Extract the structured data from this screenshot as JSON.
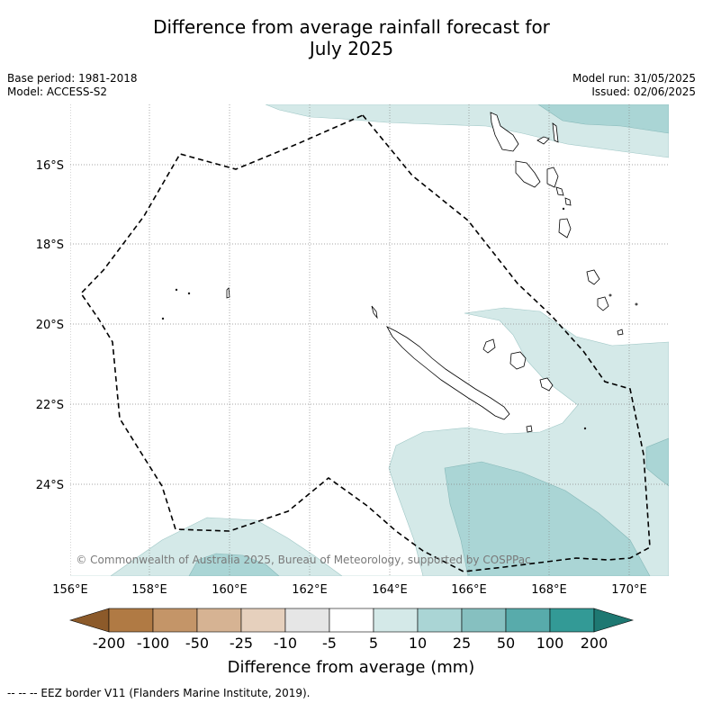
{
  "title_line1": "Difference from average rainfall forecast for",
  "title_line2": "July 2025",
  "meta_left": {
    "base_period": "Base period: 1981-2018",
    "model": "Model: ACCESS-S2"
  },
  "meta_right": {
    "model_run": "Model run: 31/05/2025",
    "issued": "Issued: 02/06/2025"
  },
  "lat_labels": [
    "16°S",
    "18°S",
    "20°S",
    "22°S",
    "24°S"
  ],
  "lon_labels": [
    "156°E",
    "158°E",
    "160°E",
    "162°E",
    "164°E",
    "166°E",
    "168°E",
    "170°E"
  ],
  "copyright": "© Commonwealth of Australia 2025, Bureau of Meteorology, supported by COSPPac",
  "colorbar": {
    "ticks": [
      "-200",
      "-100",
      "-50",
      "-25",
      "-10",
      "-5",
      "5",
      "10",
      "25",
      "50",
      "100",
      "200"
    ],
    "colors": [
      "#8c5a2a",
      "#b07a44",
      "#c49568",
      "#d6b393",
      "#e6d0bd",
      "#e6e6e6",
      "#ffffff",
      "#d4e9e8",
      "#aad5d5",
      "#86c0c0",
      "#58abab",
      "#339a96",
      "#1e7872"
    ],
    "label": "Difference from average (mm)"
  },
  "footer": "--  --  -- EEZ border V11 (Flanders Marine Institute, 2019)."
}
